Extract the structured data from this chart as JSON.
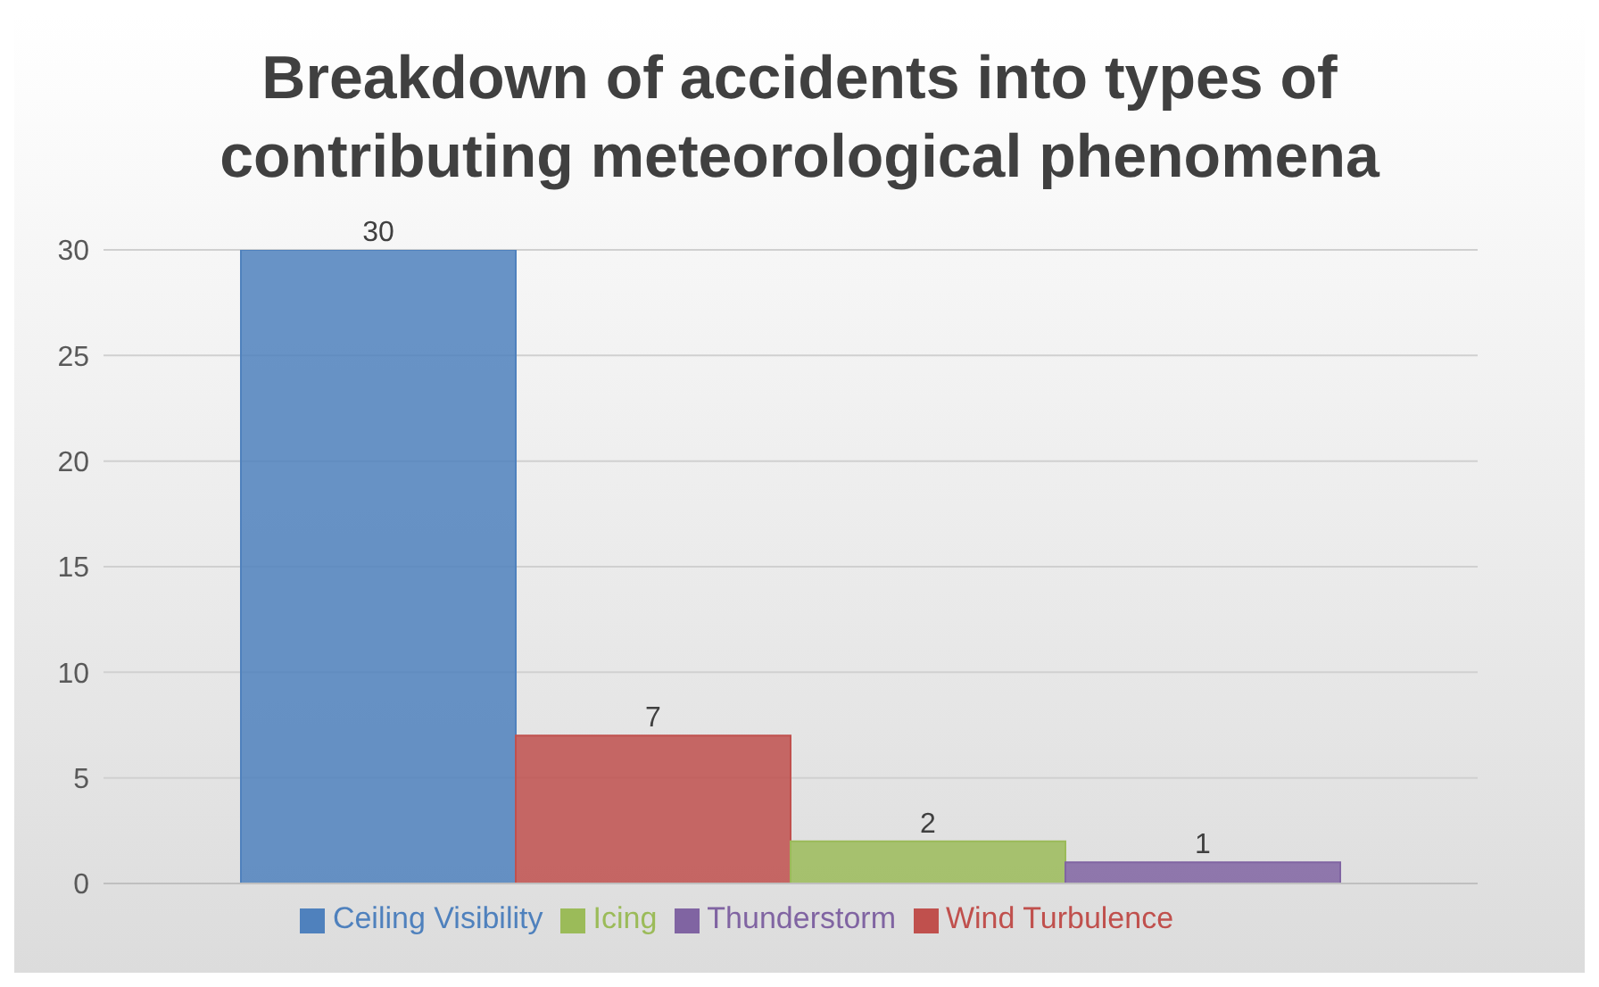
{
  "chart_data": {
    "type": "bar",
    "title": "Breakdown of accidents into types of contributing meteorological phenomena",
    "categories": [
      null
    ],
    "series": [
      {
        "name": "Ceiling Visibility",
        "color": "#4f81bd",
        "values": [
          30
        ]
      },
      {
        "name": "Wind Turbulence",
        "color": "#c0504d",
        "values": [
          7
        ]
      },
      {
        "name": "Icing",
        "color": "#9bbb59",
        "values": [
          2
        ]
      },
      {
        "name": "Thunderstorm",
        "color": "#8064a2",
        "values": [
          1
        ]
      }
    ],
    "ylim": [
      0,
      30
    ],
    "yticks": [
      0,
      5,
      10,
      15,
      20,
      25,
      30
    ],
    "grid": "y",
    "legend": "bottom",
    "data_labels": true
  }
}
